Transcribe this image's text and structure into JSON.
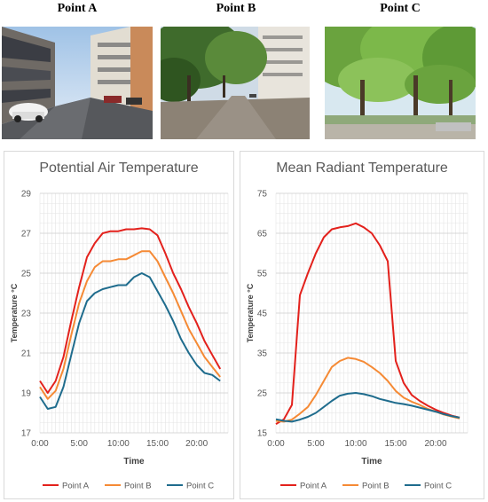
{
  "photos": [
    {
      "label": "Point A"
    },
    {
      "label": "Point B"
    },
    {
      "label": "Point C"
    }
  ],
  "chart_data": [
    {
      "type": "line",
      "title": "Potential Air Temperature",
      "xlabel": "Time",
      "ylabel": "Temperature °C",
      "x": [
        0,
        1,
        2,
        3,
        4,
        5,
        6,
        7,
        8,
        9,
        10,
        11,
        12,
        13,
        14,
        15,
        16,
        17,
        18,
        19,
        20,
        21,
        22,
        23
      ],
      "xticks": [
        0,
        5,
        10,
        15,
        20
      ],
      "xtick_labels": [
        "0:00",
        "5:00",
        "10:00",
        "15:00",
        "20:00"
      ],
      "ylim": [
        17,
        29
      ],
      "yticks": [
        17,
        19,
        21,
        23,
        25,
        27,
        29
      ],
      "grid": true,
      "legend": "bottom",
      "series": [
        {
          "name": "Point A",
          "color": "#e3211c",
          "values": [
            19.6,
            19.0,
            19.6,
            20.8,
            22.6,
            24.3,
            25.8,
            26.5,
            27.0,
            27.1,
            27.1,
            27.2,
            27.2,
            27.25,
            27.2,
            26.9,
            26.0,
            25.0,
            24.2,
            23.3,
            22.5,
            21.6,
            20.9,
            20.2
          ]
        },
        {
          "name": "Point B",
          "color": "#f58a35",
          "values": [
            19.3,
            18.7,
            19.1,
            20.2,
            21.9,
            23.5,
            24.6,
            25.3,
            25.6,
            25.6,
            25.7,
            25.7,
            25.9,
            26.1,
            26.1,
            25.6,
            24.8,
            24.0,
            23.1,
            22.2,
            21.5,
            20.8,
            20.3,
            19.8
          ]
        },
        {
          "name": "Point C",
          "color": "#1f6c8d",
          "values": [
            18.8,
            18.2,
            18.3,
            19.3,
            20.9,
            22.5,
            23.6,
            24.0,
            24.2,
            24.3,
            24.4,
            24.4,
            24.8,
            25.0,
            24.8,
            24.1,
            23.4,
            22.6,
            21.7,
            21.0,
            20.4,
            20.0,
            19.9,
            19.6
          ]
        }
      ]
    },
    {
      "type": "line",
      "title": "Mean Radiant Temperature",
      "xlabel": "Time",
      "ylabel": "Temperature °C",
      "x": [
        0,
        1,
        2,
        3,
        4,
        5,
        6,
        7,
        8,
        9,
        10,
        11,
        12,
        13,
        14,
        15,
        16,
        17,
        18,
        19,
        20,
        21,
        22,
        23
      ],
      "xticks": [
        0,
        5,
        10,
        15,
        20
      ],
      "xtick_labels": [
        "0:00",
        "5:00",
        "10:00",
        "15:00",
        "20:00"
      ],
      "ylim": [
        15,
        75
      ],
      "yticks": [
        15,
        25,
        35,
        45,
        55,
        65,
        75
      ],
      "grid": true,
      "legend": "bottom",
      "series": [
        {
          "name": "Point A",
          "color": "#e3211c",
          "values": [
            17.2,
            18.4,
            22.0,
            49.5,
            55.0,
            60.0,
            64.0,
            66.0,
            66.5,
            66.8,
            67.5,
            66.5,
            65.0,
            62.0,
            58.0,
            33.0,
            27.5,
            24.5,
            23.0,
            21.8,
            20.8,
            20.0,
            19.3,
            18.8
          ]
        },
        {
          "name": "Point B",
          "color": "#f58a35",
          "values": [
            18.0,
            17.8,
            18.3,
            19.8,
            21.5,
            24.5,
            28.0,
            31.5,
            33.0,
            33.8,
            33.5,
            32.8,
            31.5,
            30.0,
            28.0,
            25.5,
            23.8,
            22.8,
            22.0,
            21.0,
            20.3,
            19.6,
            19.1,
            18.6
          ]
        },
        {
          "name": "Point C",
          "color": "#1f6c8d",
          "values": [
            18.4,
            18.0,
            17.8,
            18.3,
            19.0,
            20.0,
            21.5,
            23.0,
            24.3,
            24.8,
            25.0,
            24.7,
            24.2,
            23.5,
            23.0,
            22.5,
            22.2,
            21.8,
            21.3,
            20.8,
            20.3,
            19.7,
            19.2,
            18.8
          ]
        }
      ]
    }
  ]
}
